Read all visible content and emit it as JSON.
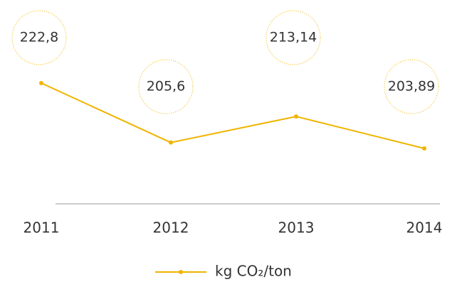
{
  "chart_data": {
    "type": "line",
    "categories": [
      "2011",
      "2012",
      "2013",
      "2014"
    ],
    "series": [
      {
        "name": "kg CO₂/ton",
        "color": "#f0b400",
        "values": [
          222.8,
          205.6,
          213.14,
          203.89
        ],
        "value_labels": [
          "222,8",
          "205,6",
          "213,14",
          "203,89"
        ]
      }
    ]
  }
}
